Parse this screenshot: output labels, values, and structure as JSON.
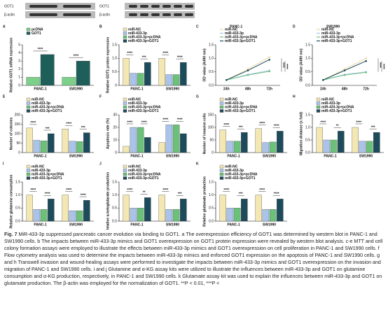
{
  "blots": [
    {
      "labels": [
        "GOT1",
        "β-actin"
      ]
    },
    {
      "labels": [
        "GOT1",
        "β-actin"
      ]
    }
  ],
  "chart_data": [
    {
      "type": "bar",
      "label": "A",
      "ylabel": "Relative GOT1 mRNA expression",
      "categories": [
        "PANC-1",
        "SW1990"
      ],
      "series": [
        {
          "name": "pcDNA",
          "color": "#7dd08a",
          "values": [
            1.0,
            1.0
          ]
        },
        {
          "name": "GOT1",
          "color": "#1e5f5a",
          "values": [
            3.8,
            3.0
          ]
        }
      ],
      "ylim": [
        0,
        5
      ],
      "yticks": [
        0,
        1,
        2,
        3,
        4,
        5
      ],
      "annotations": [
        "****",
        "****"
      ]
    },
    {
      "type": "bar",
      "label": "B",
      "ylabel": "Relative GOT1 protein expression",
      "categories": [
        "PANC-1",
        "SW1990"
      ],
      "series": [
        {
          "name": "miR-NC",
          "color": "#f3e7b3",
          "values": [
            1.0,
            1.0
          ]
        },
        {
          "name": "miR-433-3p",
          "color": "#a9c3ea",
          "values": [
            0.45,
            0.4
          ]
        },
        {
          "name": "miR-433-3p+pcDNA",
          "color": "#6cc17a",
          "values": [
            0.45,
            0.4
          ]
        },
        {
          "name": "miR-433-3p+GOT1",
          "color": "#1d4b5c",
          "values": [
            0.85,
            0.85
          ]
        }
      ],
      "ylim": [
        0,
        1.5
      ],
      "yticks": [
        0,
        {
          "value": 0.5,
          "label": "0.5"
        },
        {
          "value": 1,
          "label": "1.0"
        },
        {
          "value": 1.5,
          "label": "1.5"
        }
      ],
      "annotations": [
        "****",
        "***",
        "****",
        "****"
      ]
    },
    {
      "type": "line",
      "label": "C",
      "title": "PANC-1",
      "ylabel": "OD value (A490 nm)",
      "categories": [
        "24h",
        "48h",
        "72h"
      ],
      "series": [
        {
          "name": "miR-NC",
          "color": "#e8d9a0",
          "values": [
            0.2,
            0.6,
            1.05
          ]
        },
        {
          "name": "miR-433-3p",
          "color": "#a9c3ea",
          "values": [
            0.2,
            0.4,
            0.55
          ]
        },
        {
          "name": "miR-433-3p+pcDNA",
          "color": "#6cc17a",
          "values": [
            0.2,
            0.38,
            0.52
          ]
        },
        {
          "name": "miR-433-3p+GOT1",
          "color": "#1d4b5c",
          "values": [
            0.2,
            0.55,
            0.95
          ]
        }
      ],
      "ylim": [
        0,
        1.5
      ],
      "yticks": [
        {
          "value": 0,
          "label": "0.0"
        },
        {
          "value": 0.5,
          "label": "0.5"
        },
        {
          "value": 1,
          "label": "1.0"
        },
        {
          "value": 1.5,
          "label": "1.5"
        }
      ],
      "annotations": [
        "****",
        "****"
      ]
    },
    {
      "type": "line",
      "label": "D",
      "title": "SW1990",
      "ylabel": "OD value (A490 nm)",
      "categories": [
        "24h",
        "48h",
        "72h"
      ],
      "series": [
        {
          "name": "miR-NC",
          "color": "#e8d9a0",
          "values": [
            0.2,
            0.6,
            1.0
          ]
        },
        {
          "name": "miR-433-3p",
          "color": "#a9c3ea",
          "values": [
            0.2,
            0.4,
            0.5
          ]
        },
        {
          "name": "miR-433-3p+pcDNA",
          "color": "#6cc17a",
          "values": [
            0.2,
            0.38,
            0.48
          ]
        },
        {
          "name": "miR-433-3p+GOT1",
          "color": "#1d4b5c",
          "values": [
            0.2,
            0.55,
            0.9
          ]
        }
      ],
      "ylim": [
        0,
        1.5
      ],
      "yticks": [
        {
          "value": 0,
          "label": "0.0"
        },
        {
          "value": 0.5,
          "label": "0.5"
        },
        {
          "value": 1,
          "label": "1.0"
        },
        {
          "value": 1.5,
          "label": "1.5"
        }
      ],
      "annotations": [
        "****",
        "****"
      ]
    },
    {
      "type": "bar",
      "label": "E",
      "ylabel": "Number of colonies",
      "categories": [
        "PANC-1",
        "SW1990"
      ],
      "series": [
        {
          "name": "miR-NC",
          "color": "#f3e7b3",
          "values": [
            130,
            125
          ]
        },
        {
          "name": "miR-433-3p",
          "color": "#a9c3ea",
          "values": [
            65,
            60
          ]
        },
        {
          "name": "miR-433-3p+pcDNA",
          "color": "#6cc17a",
          "values": [
            62,
            58
          ]
        },
        {
          "name": "miR-433-3p+GOT1",
          "color": "#1d4b5c",
          "values": [
            100,
            105
          ]
        }
      ],
      "ylim": [
        0,
        200
      ],
      "yticks": [
        0,
        50,
        100,
        150,
        200
      ],
      "annotations": [
        "****",
        "***",
        "****",
        "***"
      ]
    },
    {
      "type": "bar",
      "label": "F",
      "ylabel": "Apoptosis rate (%)",
      "categories": [
        "PANC-1",
        "SW1990"
      ],
      "series": [
        {
          "name": "miR-NC",
          "color": "#f3e7b3",
          "values": [
            5,
            8
          ]
        },
        {
          "name": "miR-433-3p",
          "color": "#a9c3ea",
          "values": [
            20,
            22
          ]
        },
        {
          "name": "miR-433-3p+pcDNA",
          "color": "#6cc17a",
          "values": [
            20,
            22
          ]
        },
        {
          "name": "miR-433-3p+GOT1",
          "color": "#1d4b5c",
          "values": [
            12,
            15
          ]
        }
      ],
      "ylim": [
        0,
        30
      ],
      "yticks": [
        0,
        10,
        20,
        30
      ],
      "annotations": [
        "****",
        "****",
        "****",
        "****"
      ]
    },
    {
      "type": "bar",
      "label": "G",
      "ylabel": "Number of invasive cells",
      "categories": [
        "PANC-1",
        "SW1990"
      ],
      "series": [
        {
          "name": "miR-NC",
          "color": "#f3e7b3",
          "values": [
            90,
            95
          ]
        },
        {
          "name": "miR-433-3p",
          "color": "#a9c3ea",
          "values": [
            45,
            40
          ]
        },
        {
          "name": "miR-433-3p+pcDNA",
          "color": "#6cc17a",
          "values": [
            45,
            42
          ]
        },
        {
          "name": "miR-433-3p+GOT1",
          "color": "#1d4b5c",
          "values": [
            80,
            85
          ]
        }
      ],
      "ylim": [
        0,
        150
      ],
      "yticks": [
        0,
        50,
        100,
        150
      ],
      "annotations": [
        "****",
        "***",
        "****",
        "****"
      ]
    },
    {
      "type": "bar",
      "label": "H",
      "ylabel": "Migration distance (x fold)",
      "categories": [
        "PANC-1",
        "SW1990"
      ],
      "series": [
        {
          "name": "miR-NC",
          "color": "#f3e7b3",
          "values": [
            1.0,
            1.0
          ]
        },
        {
          "name": "miR-433-3p",
          "color": "#a9c3ea",
          "values": [
            0.5,
            0.45
          ]
        },
        {
          "name": "miR-433-3p+pcDNA",
          "color": "#6cc17a",
          "values": [
            0.5,
            0.45
          ]
        },
        {
          "name": "miR-433-3p+GOT1",
          "color": "#1d4b5c",
          "values": [
            0.85,
            0.8
          ]
        }
      ],
      "ylim": [
        0,
        1.5
      ],
      "yticks": [
        {
          "value": 0,
          "label": "0.0"
        },
        {
          "value": 0.5,
          "label": "0.5"
        },
        {
          "value": 1,
          "label": "1.0"
        },
        {
          "value": 1.5,
          "label": "1.5"
        }
      ],
      "annotations": [
        "****",
        "**",
        "****",
        "***"
      ]
    },
    {
      "type": "bar",
      "label": "I",
      "ylabel": "Relative glutamine consumption",
      "categories": [
        "PANC-1",
        "SW1990"
      ],
      "series": [
        {
          "name": "miR-NC",
          "color": "#f3e7b3",
          "values": [
            1.0,
            1.0
          ]
        },
        {
          "name": "miR-433-3p",
          "color": "#a9c3ea",
          "values": [
            0.45,
            0.4
          ]
        },
        {
          "name": "miR-433-3p+pcDNA",
          "color": "#6cc17a",
          "values": [
            0.45,
            0.4
          ]
        },
        {
          "name": "miR-433-3p+GOT1",
          "color": "#1d4b5c",
          "values": [
            0.85,
            0.8
          ]
        }
      ],
      "ylim": [
        0,
        1.5
      ],
      "yticks": [
        {
          "value": 0,
          "label": "0.0"
        },
        {
          "value": 0.5,
          "label": "0.5"
        },
        {
          "value": 1,
          "label": "1.0"
        },
        {
          "value": 1.5,
          "label": "1.5"
        }
      ],
      "annotations": [
        "****",
        "****",
        "****",
        "****"
      ]
    },
    {
      "type": "bar",
      "label": "J",
      "ylabel": "Relative α-ketoglutarate production",
      "categories": [
        "PANC-1",
        "SW1990"
      ],
      "series": [
        {
          "name": "miR-NC",
          "color": "#f3e7b3",
          "values": [
            1.0,
            1.0
          ]
        },
        {
          "name": "miR-433-3p",
          "color": "#a9c3ea",
          "values": [
            0.5,
            0.45
          ]
        },
        {
          "name": "miR-433-3p+pcDNA",
          "color": "#6cc17a",
          "values": [
            0.5,
            0.45
          ]
        },
        {
          "name": "miR-433-3p+GOT1",
          "color": "#1d4b5c",
          "values": [
            0.9,
            0.85
          ]
        }
      ],
      "ylim": [
        0,
        1.5
      ],
      "yticks": [
        {
          "value": 0,
          "label": "0.0"
        },
        {
          "value": 0.5,
          "label": "0.5"
        },
        {
          "value": 1,
          "label": "1.0"
        },
        {
          "value": 1.5,
          "label": "1.5"
        }
      ],
      "annotations": [
        "****",
        "**",
        "****",
        "***"
      ]
    },
    {
      "type": "bar",
      "label": "K",
      "ylabel": "Relative glutamate production",
      "categories": [
        "PANC-1",
        "SW1990"
      ],
      "series": [
        {
          "name": "miR-NC",
          "color": "#f3e7b3",
          "values": [
            1.0,
            1.0
          ]
        },
        {
          "name": "miR-433-3p",
          "color": "#a9c3ea",
          "values": [
            0.5,
            0.45
          ]
        },
        {
          "name": "miR-433-3p+pcDNA",
          "color": "#6cc17a",
          "values": [
            0.5,
            0.45
          ]
        },
        {
          "name": "miR-433-3p+GOT1",
          "color": "#1d4b5c",
          "values": [
            0.85,
            0.85
          ]
        }
      ],
      "ylim": [
        0,
        1.5
      ],
      "yticks": [
        {
          "value": 0,
          "label": "0.0"
        },
        {
          "value": 0.5,
          "label": "0.5"
        },
        {
          "value": 1,
          "label": "1.0"
        },
        {
          "value": 1.5,
          "label": "1.5"
        }
      ],
      "annotations": [
        "****",
        "***",
        "****",
        "****"
      ]
    }
  ],
  "caption": {
    "label": "Fig. 7",
    "text": "MiR-433-3p suppressed pancreatic cancer evolution via binding to GOT1. a The overexpression efficiency of GOT1 was determined by western blot in PANC-1 and SW1990 cells. b The impacts between miR-433-3p mimics and GOT1 overexpression on GOT1 protein expression were revealed by western blot analysis. c-e MTT and cell colony formation assays were employed to illustrate the effects between miR-433-3p mimics and GOT1 overexpression on cell proliferation in PANC-1 and SW1990 cells. f Flow cytometry analysis was used to determine the impacts between miR-433-3p mimics and enforced GOT1 expression on the apoptosis of PANC-1 and SW1990 cells. g and h Transwell invasion and wound-healing assays were performed to investigate the impacts between miR-433-3p mimics and GOT1 overexpression on the invasion and migration of PANC-1 and SW1990 cells. i and j Glutamine and α-KG assay kits were utilized to illustrate the influences between miR-433-3p and GOT1 on glutamine consumption and α-KG production, respectively, in PANC-1 and SW1990 cells. k Glutamate assay kit was used to explain the influences between miR-433-3p and GOT1 on glutamate production. The β-actin was employed for the normalization of GOT1. **P < 0.01, ***P <"
  }
}
